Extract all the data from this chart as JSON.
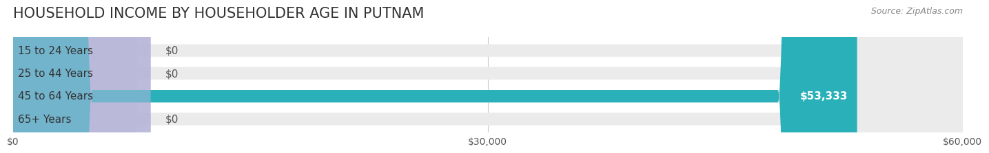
{
  "title": "HOUSEHOLD INCOME BY HOUSEHOLDER AGE IN PUTNAM",
  "source": "Source: ZipAtlas.com",
  "categories": [
    "15 to 24 Years",
    "25 to 44 Years",
    "45 to 64 Years",
    "65+ Years"
  ],
  "values": [
    0,
    0,
    53333,
    0
  ],
  "xlim": [
    0,
    60000
  ],
  "xticks": [
    0,
    30000,
    60000
  ],
  "xtick_labels": [
    "$0",
    "$30,000",
    "$60,000"
  ],
  "bar_colors": [
    "#a8c4e0",
    "#c9a8c8",
    "#2ab0b8",
    "#b0b8e0"
  ],
  "bar_bg_colors": [
    "#ebebeb",
    "#ebebeb",
    "#ebebeb",
    "#ebebeb"
  ],
  "label_colors": [
    "#555555",
    "#555555",
    "#ffffff",
    "#555555"
  ],
  "value_labels": [
    "$0",
    "$0",
    "$53,333",
    "$0"
  ],
  "title_fontsize": 15,
  "source_fontsize": 9,
  "label_fontsize": 11,
  "value_fontsize": 11,
  "bar_height": 0.55,
  "bg_color": "#ffffff",
  "grid_color": "#cccccc",
  "title_color": "#333333",
  "source_color": "#888888"
}
